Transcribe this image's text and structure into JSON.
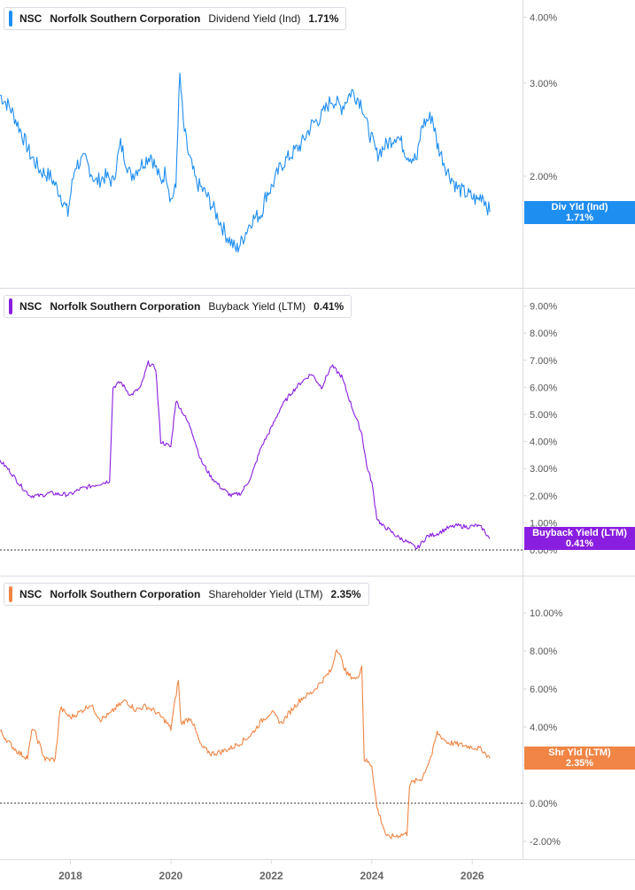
{
  "colors": {
    "dividend": "#1f8ef1",
    "buyback": "#8a1ee0",
    "shareholder": "#f08545",
    "grid": "#d9dce1",
    "axis_text": "#555555"
  },
  "x_axis": {
    "ticks": [
      2018,
      2020,
      2022,
      2024,
      2026
    ],
    "range": [
      2016.6,
      2027.0
    ]
  },
  "panels": [
    {
      "id": "dividend",
      "ticker": "NSC",
      "company": "Norfolk Southern Corporation",
      "metric": "Dividend Yield (Ind)",
      "value": "1.71%",
      "tag_line1": "Div Yld (Ind)",
      "tag_line2": "1.71%"
    },
    {
      "id": "buyback",
      "ticker": "NSC",
      "company": "Norfolk Southern Corporation",
      "metric": "Buyback Yield (LTM)",
      "value": "0.41%",
      "tag_line1": "Buyback Yield (LTM)",
      "tag_line2": "0.41%"
    },
    {
      "id": "shareholder",
      "ticker": "NSC",
      "company": "Norfolk Southern Corporation",
      "metric": "Shareholder Yield (LTM)",
      "value": "2.35%",
      "tag_line1": "Shr Yld (LTM)",
      "tag_line2": "2.35%"
    }
  ],
  "chart_data": [
    {
      "type": "line",
      "series": [
        {
          "name": "Dividend Yield (Ind)",
          "x": [
            2016.6,
            2016.8,
            2017.0,
            2017.2,
            2017.4,
            2017.6,
            2017.8,
            2017.95,
            2018.1,
            2018.3,
            2018.5,
            2018.7,
            2018.85,
            2019.0,
            2019.2,
            2019.4,
            2019.6,
            2019.8,
            2019.9,
            2020.0,
            2020.1,
            2020.18,
            2020.25,
            2020.35,
            2020.5,
            2020.7,
            2020.9,
            2021.1,
            2021.3,
            2021.4,
            2021.6,
            2021.8,
            2021.9,
            2022.0,
            2022.2,
            2022.4,
            2022.6,
            2022.8,
            2023.0,
            2023.2,
            2023.4,
            2023.6,
            2023.8,
            2023.9,
            2024.1,
            2024.3,
            2024.5,
            2024.7,
            2024.9,
            2025.0,
            2025.2,
            2025.3,
            2025.5,
            2025.7,
            2025.9,
            2026.1,
            2026.2,
            2026.35
          ],
          "values": [
            2.85,
            2.7,
            2.45,
            2.2,
            2.05,
            2.0,
            1.85,
            1.7,
            2.1,
            2.15,
            1.95,
            2.0,
            1.95,
            2.3,
            2.0,
            2.1,
            2.2,
            1.95,
            2.05,
            1.8,
            1.9,
            3.1,
            2.5,
            2.2,
            1.95,
            1.85,
            1.7,
            1.55,
            1.45,
            1.5,
            1.65,
            1.7,
            1.85,
            1.9,
            2.1,
            2.2,
            2.3,
            2.5,
            2.6,
            2.8,
            2.7,
            2.9,
            2.75,
            2.5,
            2.2,
            2.3,
            2.4,
            2.2,
            2.15,
            2.5,
            2.6,
            2.3,
            2.05,
            1.9,
            1.85,
            1.8,
            1.85,
            1.71
          ]
        }
      ],
      "y_ticks": [
        "2.00%",
        "3.00%",
        "4.00%"
      ],
      "y_scale": "log"
    },
    {
      "type": "line",
      "series": [
        {
          "name": "Buyback Yield (LTM)",
          "x": [
            2016.6,
            2016.8,
            2017.0,
            2017.2,
            2017.4,
            2017.6,
            2017.8,
            2018.0,
            2018.2,
            2018.4,
            2018.6,
            2018.78,
            2018.85,
            2019.0,
            2019.2,
            2019.4,
            2019.55,
            2019.7,
            2019.8,
            2020.0,
            2020.1,
            2020.2,
            2020.4,
            2020.6,
            2020.8,
            2021.0,
            2021.2,
            2021.4,
            2021.6,
            2021.8,
            2022.0,
            2022.2,
            2022.4,
            2022.6,
            2022.8,
            2023.0,
            2023.2,
            2023.4,
            2023.6,
            2023.8,
            2023.9,
            2024.0,
            2024.1,
            2024.2,
            2024.3,
            2024.5,
            2024.7,
            2024.9,
            2025.1,
            2025.3,
            2025.5,
            2025.7,
            2025.9,
            2026.1,
            2026.2,
            2026.35
          ],
          "values": [
            3.3,
            2.9,
            2.4,
            2.0,
            2.0,
            2.1,
            2.05,
            2.05,
            2.25,
            2.35,
            2.45,
            2.55,
            6.0,
            6.2,
            5.7,
            6.0,
            6.9,
            6.7,
            4.0,
            3.8,
            5.5,
            5.2,
            4.5,
            3.3,
            2.7,
            2.3,
            2.0,
            2.1,
            2.7,
            3.8,
            4.5,
            5.3,
            5.8,
            6.2,
            6.5,
            6.0,
            6.8,
            6.4,
            5.3,
            4.3,
            3.1,
            2.5,
            1.2,
            0.9,
            0.8,
            0.5,
            0.3,
            0.05,
            0.5,
            0.6,
            0.8,
            0.9,
            0.85,
            0.9,
            0.8,
            0.41
          ]
        }
      ],
      "y_ticks": [
        "0.00%",
        "1.00%",
        "2.00%",
        "3.00%",
        "4.00%",
        "5.00%",
        "6.00%",
        "7.00%",
        "8.00%",
        "9.00%"
      ],
      "y_range": [
        0,
        9
      ]
    },
    {
      "type": "line",
      "series": [
        {
          "name": "Shareholder Yield (LTM)",
          "x": [
            2016.6,
            2016.8,
            2017.0,
            2017.15,
            2017.25,
            2017.5,
            2017.7,
            2017.8,
            2018.0,
            2018.2,
            2018.4,
            2018.6,
            2018.8,
            2018.9,
            2019.1,
            2019.3,
            2019.5,
            2019.7,
            2019.9,
            2020.0,
            2020.15,
            2020.2,
            2020.4,
            2020.6,
            2020.8,
            2021.0,
            2021.2,
            2021.4,
            2021.6,
            2021.8,
            2022.0,
            2022.2,
            2022.4,
            2022.6,
            2022.8,
            2023.0,
            2023.2,
            2023.3,
            2023.5,
            2023.7,
            2023.8,
            2023.85,
            2024.0,
            2024.1,
            2024.3,
            2024.5,
            2024.7,
            2024.75,
            2024.9,
            2025.0,
            2025.2,
            2025.3,
            2025.5,
            2025.7,
            2025.9,
            2026.1,
            2026.2,
            2026.35
          ],
          "values": [
            3.8,
            3.1,
            2.6,
            2.4,
            4.0,
            2.3,
            2.3,
            5.0,
            4.5,
            4.8,
            5.2,
            4.4,
            4.7,
            5.0,
            5.4,
            4.9,
            5.1,
            4.8,
            4.3,
            3.9,
            6.5,
            4.2,
            4.5,
            3.0,
            2.6,
            2.7,
            2.9,
            3.2,
            3.6,
            4.3,
            4.8,
            4.2,
            4.9,
            5.5,
            5.8,
            6.4,
            7.0,
            8.2,
            6.8,
            6.5,
            7.2,
            2.3,
            2.0,
            -0.2,
            -1.8,
            -1.7,
            -1.6,
            1.0,
            1.2,
            1.3,
            2.6,
            3.7,
            3.2,
            3.1,
            3.0,
            2.9,
            2.8,
            2.35
          ]
        }
      ],
      "y_ticks": [
        "-2.00%",
        "0.00%",
        "2.00%",
        "4.00%",
        "6.00%",
        "8.00%",
        "10.00%"
      ],
      "y_range": [
        -2,
        10
      ]
    }
  ]
}
